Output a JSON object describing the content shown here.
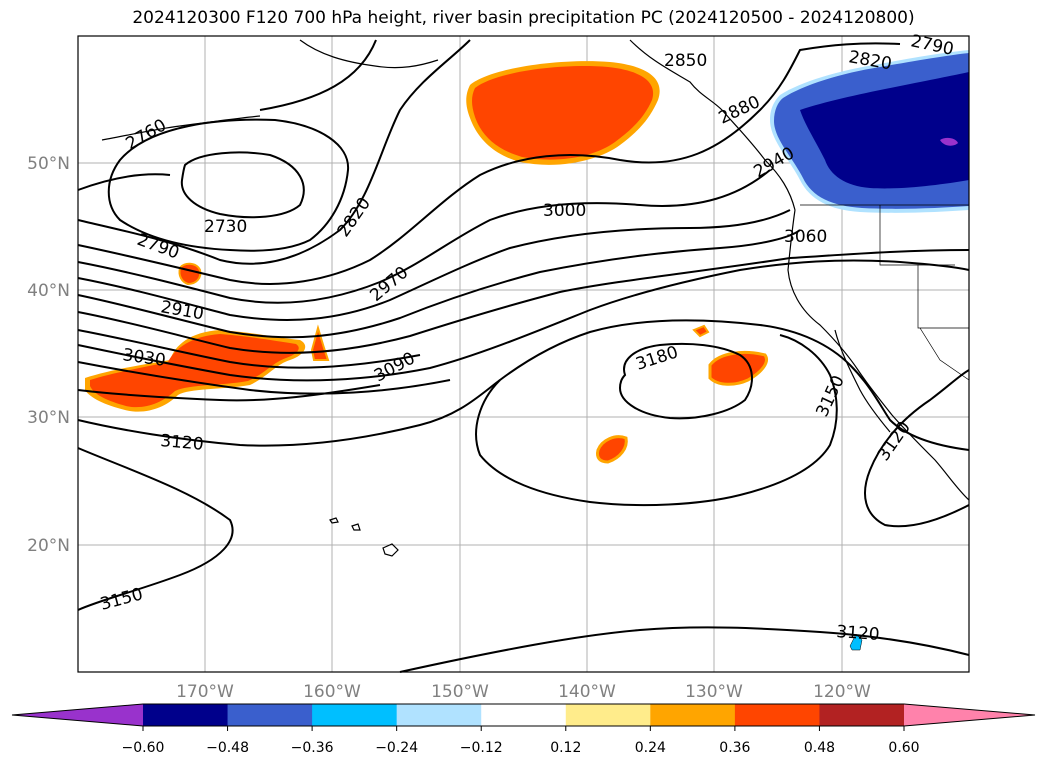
{
  "title": "2024120300 F120 700 hPa height, river basin precipitation PC (2024120500 - 2024120800)",
  "map": {
    "lat_labels": [
      "50°N",
      "40°N",
      "30°N",
      "20°N"
    ],
    "lon_labels": [
      "170°W",
      "160°W",
      "150°W",
      "140°W",
      "130°W",
      "120°W"
    ],
    "extent": {
      "lon_min": -180,
      "lon_max": -110,
      "lat_min": 10,
      "lat_max": 60
    }
  },
  "contour_labels": [
    "2760",
    "2730",
    "2790",
    "2820",
    "2910",
    "2970",
    "3000",
    "3030",
    "3090",
    "3120",
    "3150",
    "3180",
    "2850",
    "2880",
    "2940",
    "3060",
    "3150",
    "3120",
    "3120",
    "2820",
    "2790"
  ],
  "colorbar": {
    "ticks": [
      "−0.60",
      "−0.48",
      "−0.36",
      "−0.24",
      "−0.12",
      "0.12",
      "0.24",
      "0.36",
      "0.48",
      "0.60"
    ],
    "colors": [
      "#9932cc",
      "#00008b",
      "#3a5fcd",
      "#00bfff",
      "#b0e2ff",
      "#ffffff",
      "#ffec8b",
      "#ffa500",
      "#ff4500",
      "#b22222",
      "#ff82ab"
    ]
  }
}
